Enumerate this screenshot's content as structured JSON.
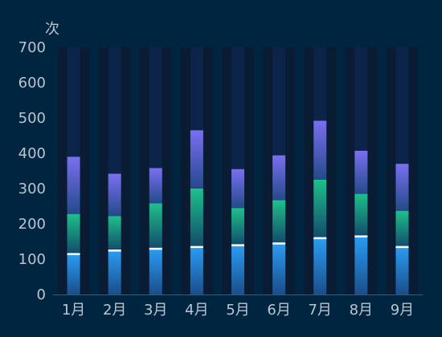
{
  "chart_data": {
    "type": "bar",
    "stacked": true,
    "y_unit_label": "次",
    "categories": [
      "1月",
      "2月",
      "3月",
      "4月",
      "5月",
      "6月",
      "7月",
      "8月",
      "9月"
    ],
    "series": [
      {
        "values": [
          115,
          125,
          130,
          135,
          140,
          145,
          160,
          165,
          135
        ]
      },
      {
        "values": [
          113,
          97,
          128,
          165,
          105,
          122,
          165,
          120,
          102
        ]
      },
      {
        "values": [
          162,
          120,
          100,
          165,
          110,
          127,
          167,
          122,
          133
        ]
      }
    ],
    "background_total": 700,
    "ylim": [
      0,
      700
    ],
    "yticks": [
      0,
      100,
      200,
      300,
      400,
      500,
      600,
      700
    ],
    "grid": false,
    "legend": "none",
    "colors": {
      "background": "#002540",
      "track": "#0c2447",
      "band": "#0a1c33",
      "series_0_top": "#2a9df4",
      "series_0_bottom": "#1a4d8a",
      "series_1_top": "#1ec08a",
      "series_1_bottom": "#124b6a",
      "series_2_top": "#7a6ff0",
      "series_2_bottom": "#234a8a",
      "cap": "#ffffff",
      "axis": "#3a5a78"
    }
  }
}
